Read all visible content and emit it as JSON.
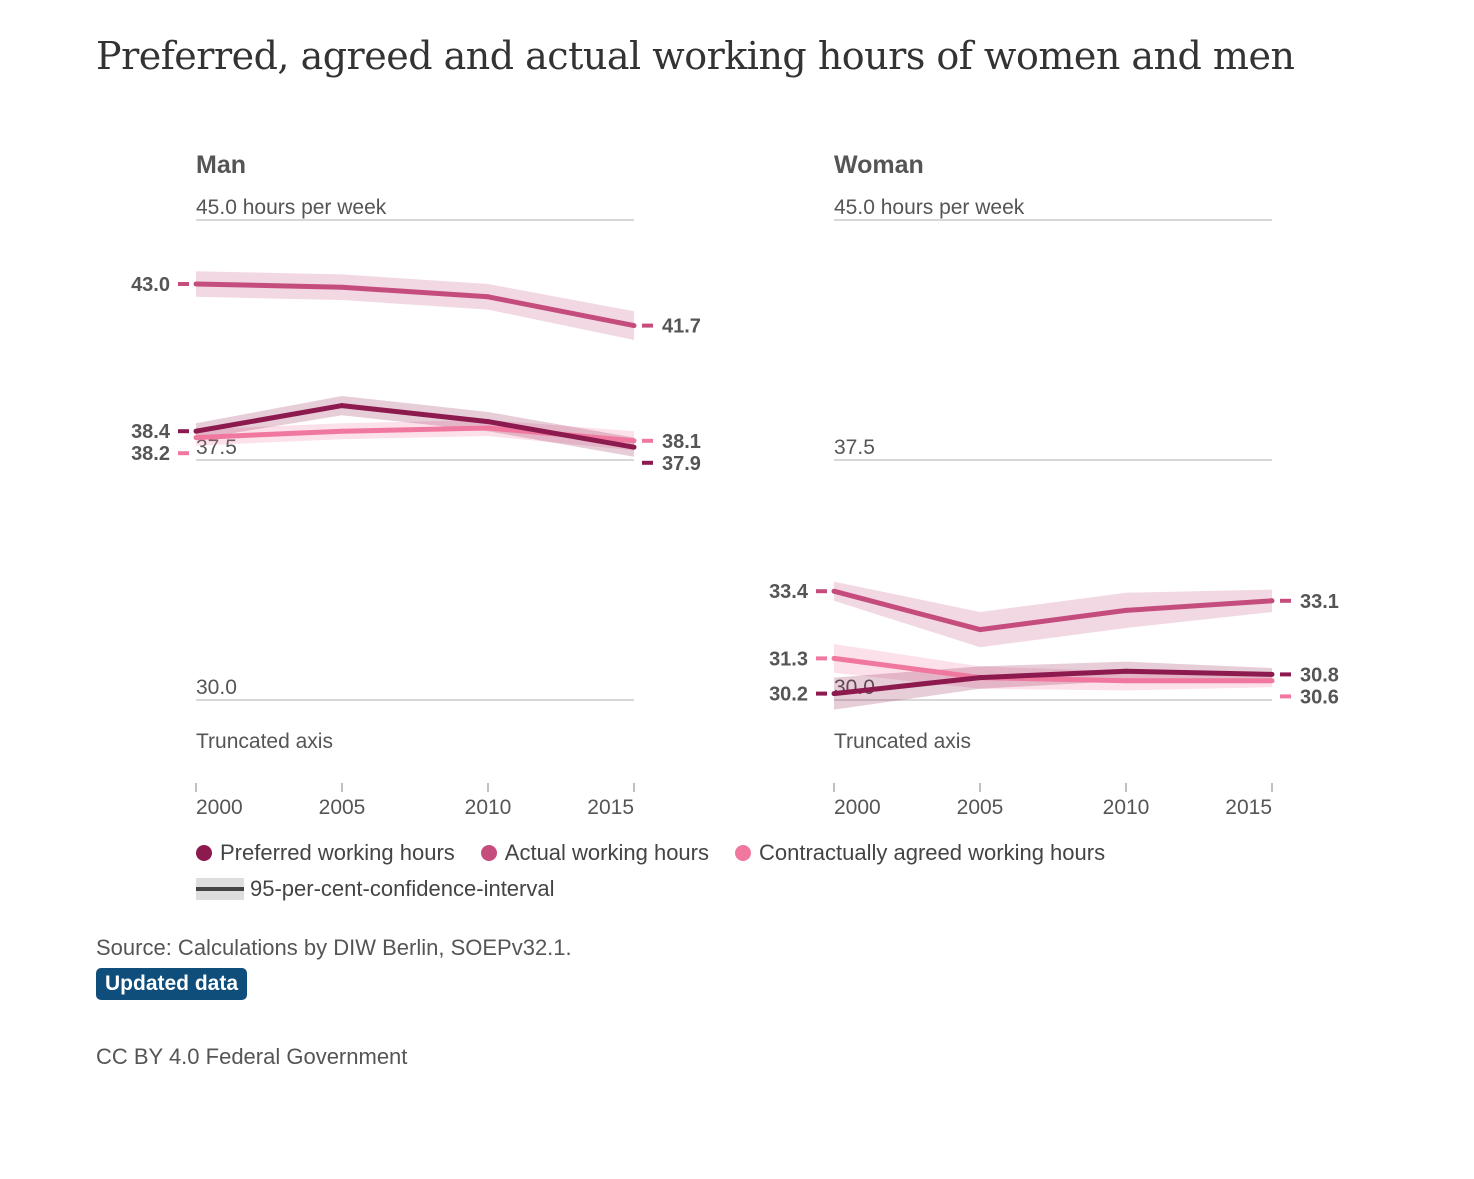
{
  "title": "Preferred, agreed and actual working hours of women and men",
  "colors": {
    "preferred": "#8c1a4f",
    "actual": "#c44d7e",
    "agreed": "#f0789f",
    "gridline": "#cccccc",
    "ci_fill": "#dddddd",
    "ci_line": "#444444",
    "badge": "#0f4d7a"
  },
  "legend": {
    "preferred": "Preferred working hours",
    "actual": "Actual working hours",
    "agreed": "Contractually agreed working hours",
    "ci": "95-per-cent-confidence-interval"
  },
  "source": "Source: Calculations by DIW Berlin, SOEPv32.1.",
  "badge": "Updated data",
  "license": "CC BY 4.0 Federal Government",
  "chart_data": [
    {
      "type": "line",
      "title": "Man",
      "unit_label": "45.0 hours per week",
      "truncated_label": "Truncated axis",
      "grid_labels": [
        "45.0 hours per week",
        "37.5",
        "30.0"
      ],
      "ylim": [
        30,
        45
      ],
      "x": [
        "2000",
        "2005",
        "2010",
        "2015"
      ],
      "series": [
        {
          "key": "actual",
          "name": "Actual working hours",
          "values": [
            43.0,
            42.9,
            42.6,
            41.7
          ],
          "ci": [
            0.4,
            0.4,
            0.4,
            0.45
          ],
          "start_label": "43.0",
          "end_label": "41.7"
        },
        {
          "key": "agreed",
          "name": "Contractually agreed working hours",
          "values": [
            38.2,
            38.4,
            38.5,
            38.1
          ],
          "ci": [
            0.25,
            0.25,
            0.25,
            0.3
          ],
          "start_label": "38.2",
          "end_label": "38.1"
        },
        {
          "key": "preferred",
          "name": "Preferred working hours",
          "values": [
            38.4,
            39.2,
            38.7,
            37.9
          ],
          "ci": [
            0.25,
            0.3,
            0.3,
            0.3
          ],
          "start_label": "38.4",
          "end_label": "37.9"
        }
      ]
    },
    {
      "type": "line",
      "title": "Woman",
      "unit_label": "45.0 hours per week",
      "truncated_label": "Truncated axis",
      "grid_labels": [
        "45.0 hours per week",
        "37.5",
        "30.0"
      ],
      "ylim": [
        30,
        45
      ],
      "x": [
        "2000",
        "2005",
        "2010",
        "2015"
      ],
      "series": [
        {
          "key": "actual",
          "name": "Actual working hours",
          "values": [
            33.4,
            32.2,
            32.8,
            33.1
          ],
          "ci": [
            0.3,
            0.55,
            0.55,
            0.35
          ],
          "start_label": "33.4",
          "end_label": "33.1"
        },
        {
          "key": "agreed",
          "name": "Contractually agreed working hours",
          "values": [
            31.3,
            30.7,
            30.6,
            30.6
          ],
          "ci": [
            0.45,
            0.35,
            0.3,
            0.2
          ],
          "start_label": "31.3",
          "end_label": "30.6"
        },
        {
          "key": "preferred",
          "name": "Preferred working hours",
          "values": [
            30.2,
            30.7,
            30.9,
            30.8
          ],
          "ci": [
            0.5,
            0.35,
            0.3,
            0.2
          ],
          "start_label": "30.2",
          "end_label": "30.8"
        }
      ]
    }
  ]
}
